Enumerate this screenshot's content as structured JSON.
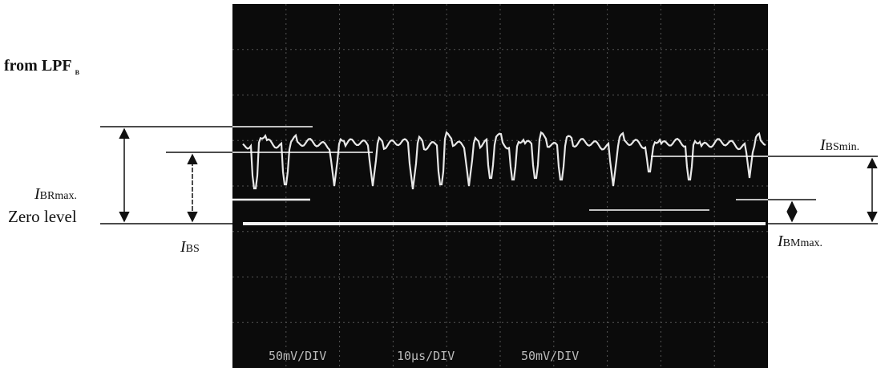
{
  "left_labels": {
    "source": {
      "text": "from LPF",
      "subscript": "B"
    },
    "i_br_max": {
      "symbol": "I",
      "subscript": "BRmax."
    },
    "zero_level": "Zero level",
    "i_bs": {
      "symbol": "I",
      "subscript": "BS"
    }
  },
  "right_labels": {
    "i_bs_min": {
      "symbol": "I",
      "subscript": "BSmin."
    },
    "i_bm_max": {
      "symbol": "I",
      "subscript": "BMmax."
    }
  },
  "scope_settings": [
    "50mV/DIV",
    "10μs/DIV",
    "50mV/DIV"
  ]
}
